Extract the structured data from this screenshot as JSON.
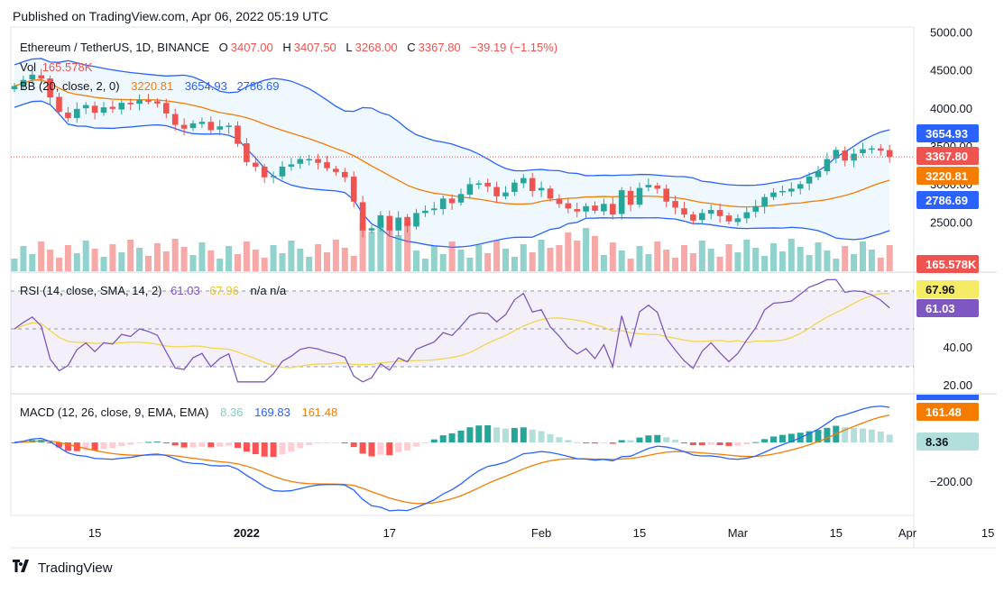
{
  "published": "Published on TradingView.com, Apr 06, 2022 05:19 UTC",
  "legend": {
    "symbol": "Ethereum / TetherUS, 1D, BINANCE",
    "o_label": "O",
    "o_val": "3407.00",
    "h_label": "H",
    "h_val": "3407.50",
    "l_label": "L",
    "l_val": "3268.00",
    "c_label": "C",
    "c_val": "3367.80",
    "change": "−39.19 (−1.15%)",
    "vol_label": "Vol",
    "vol_val": "165.578K",
    "bb_label": "BB (20, close, 2, 0)",
    "bb_mid": "3220.81",
    "bb_up": "3654.93",
    "bb_low": "2786.69",
    "rsi_label": "RSI (14, close, SMA, 14, 2)",
    "rsi_val": "61.03",
    "rsi_ma": "67.96",
    "rsi_na": "n/a  n/a",
    "macd_label": "MACD (12, 26, close, 9, EMA, EMA)",
    "macd_hist": "8.36",
    "macd_line": "169.83",
    "macd_signal": "161.48"
  },
  "axis": {
    "price_ticks": [
      "5000.00",
      "4500.00",
      "4000.00",
      "3500.00",
      "3000.00",
      "2500.00"
    ],
    "rsi_ticks": [
      "40.00",
      "20.00"
    ],
    "macd_ticks": [
      "−200.00"
    ],
    "x_ticks": [
      "15",
      "2022",
      "17",
      "Feb",
      "15",
      "Mar",
      "15",
      "Apr",
      "15"
    ]
  },
  "badges": {
    "upper": "3654.93",
    "close": "3367.80",
    "mid": "3220.81",
    "lower": "2786.69",
    "vol": "165.578K",
    "rsi_ma": "67.96",
    "rsi": "61.03",
    "macd_partial": "169.83",
    "macd_signal": "161.48",
    "macd_hist": "8.36"
  },
  "colors": {
    "up": "#26a69a",
    "down": "#ef5350",
    "bb_band": "#2962ff",
    "bb_mid": "#f57c00",
    "rsi": "#7e57c2",
    "rsi_ma": "#f5d742",
    "macd": "#2962ff",
    "signal": "#f57c00"
  },
  "logo": "TradingView",
  "chart_data": {
    "type": "candlestick",
    "symbol": "Ethereum / TetherUS, 1D, BINANCE",
    "x_range": [
      "Dec 06 2021",
      "Apr 15 2022"
    ],
    "ylim": [
      2200,
      5100
    ],
    "last": {
      "open": 3407.0,
      "high": 3407.5,
      "low": 3268.0,
      "close": 3367.8,
      "change": -39.19,
      "change_pct": -1.15,
      "volume": "165.578K"
    },
    "bollinger": {
      "params": "20, close, 2, 0",
      "basis": 3220.81,
      "upper": 3654.93,
      "lower": 2786.69
    },
    "rsi": {
      "params": "14, close, SMA, 14, 2",
      "value": 61.03,
      "ma": 67.96
    },
    "macd": {
      "params": "12, 26, close, 9, EMA, EMA",
      "histogram": 8.36,
      "macd": 169.83,
      "signal": 161.48
    },
    "closes": [
      4300,
      4380,
      4450,
      4400,
      4150,
      3960,
      3880,
      4000,
      4050,
      3950,
      4020,
      4000,
      4080,
      4060,
      4120,
      4100,
      4070,
      3940,
      3790,
      3740,
      3810,
      3830,
      3720,
      3770,
      3780,
      3540,
      3300,
      3240,
      3100,
      3120,
      3240,
      3270,
      3340,
      3340,
      3290,
      3220,
      3170,
      3100,
      2780,
      2400,
      2430,
      2600,
      2400,
      2570,
      2460,
      2630,
      2660,
      2690,
      2820,
      2760,
      2880,
      3010,
      3020,
      2980,
      2850,
      2900,
      3030,
      3090,
      2920,
      2960,
      2820,
      2750,
      2690,
      2650,
      2720,
      2660,
      2750,
      2610,
      2930,
      2740,
      2960,
      3000,
      2950,
      2780,
      2700,
      2610,
      2530,
      2630,
      2670,
      2590,
      2520,
      2560,
      2640,
      2720,
      2840,
      2900,
      2920,
      2950,
      3010,
      3110,
      3180,
      3340,
      3460,
      3320,
      3410,
      3470,
      3480,
      3450,
      3368
    ]
  }
}
